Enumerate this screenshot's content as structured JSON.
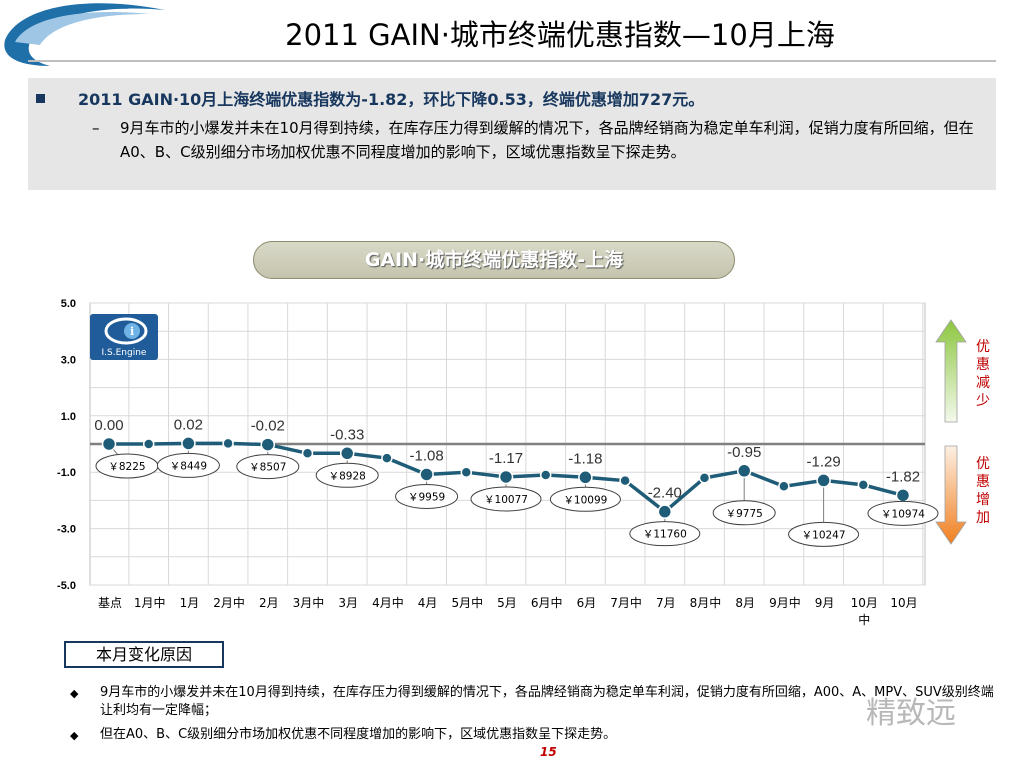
{
  "header": {
    "title": "2011 GAIN·城市终端优惠指数—10月上海"
  },
  "summary": {
    "headline": "2011 GAIN·10月上海终端优惠指数为-1.82，环比下降0.53，终端优惠增加727元。",
    "detail": "9月车市的小爆发并未在10月得到持续，在库存压力得到缓解的情况下，各品牌经销商为稳定单车利润，促销力度有所回缩，但在A0、B、C级别细分市场加权优惠不同程度增加的影响下，区域优惠指数呈下探走势。"
  },
  "chart_title": "GAIN·城市终端优惠指数-上海",
  "logo": {
    "text": "I.S.Engine"
  },
  "legend_arrows": {
    "up_label": "优惠减少",
    "down_label": "优惠增加",
    "up_color": "#8cc63f",
    "down_color": "#f07f1f"
  },
  "chart_data": {
    "type": "line",
    "categories": [
      "基点",
      "1月中",
      "1月",
      "2月中",
      "2月",
      "3月中",
      "3月",
      "4月中",
      "4月",
      "5月中",
      "5月",
      "6月中",
      "6月",
      "7月中",
      "7月",
      "8月中",
      "8月",
      "9月中",
      "9月",
      "10月中",
      "10月"
    ],
    "values": [
      0.0,
      0.0,
      0.02,
      0.02,
      -0.02,
      -0.33,
      -0.33,
      -0.5,
      -1.08,
      -1.0,
      -1.17,
      -1.1,
      -1.18,
      -1.3,
      -2.4,
      -1.2,
      -0.95,
      -1.5,
      -1.29,
      -1.45,
      -1.82
    ],
    "point_labels": [
      {
        "index": 0,
        "value": "0.00"
      },
      {
        "index": 2,
        "value": "0.02"
      },
      {
        "index": 4,
        "value": "-0.02"
      },
      {
        "index": 6,
        "value": "-0.33"
      },
      {
        "index": 8,
        "value": "-1.08"
      },
      {
        "index": 10,
        "value": "-1.17"
      },
      {
        "index": 12,
        "value": "-1.18"
      },
      {
        "index": 14,
        "value": "-2.40"
      },
      {
        "index": 16,
        "value": "-0.95"
      },
      {
        "index": 18,
        "value": "-1.29"
      },
      {
        "index": 20,
        "value": "-1.82"
      }
    ],
    "price_callouts": [
      {
        "index": 0,
        "text": "￥8225"
      },
      {
        "index": 2,
        "text": "￥8449"
      },
      {
        "index": 4,
        "text": "￥8507"
      },
      {
        "index": 6,
        "text": "￥8928"
      },
      {
        "index": 8,
        "text": "￥9959"
      },
      {
        "index": 10,
        "text": "￥10077"
      },
      {
        "index": 12,
        "text": "￥10099"
      },
      {
        "index": 14,
        "text": "￥11760"
      },
      {
        "index": 16,
        "text": "￥9775"
      },
      {
        "index": 18,
        "text": "￥10247"
      },
      {
        "index": 20,
        "text": "￥10974"
      }
    ],
    "y_ticks": [
      "5.0",
      "3.0",
      "1.0",
      "-1.0",
      "-3.0",
      "-5.0"
    ],
    "ylim": [
      -5,
      5
    ],
    "grid": true,
    "line_color": "#1f5c78",
    "marker_color": "#1f5c78",
    "baseline_color": "#808080"
  },
  "reasons": {
    "box_label": "本月变化原因",
    "items": [
      "9月车市的小爆发并未在10月得到持续，在库存压力得到缓解的情况下，各品牌经销商为稳定单车利润，促销力度有所回缩，A00、A、MPV、SUV级别终端让利均有一定降幅；",
      "但在A0、B、C级别细分市场加权优惠不同程度增加的影响下，区域优惠指数呈下探走势。"
    ]
  },
  "page_number": "15",
  "watermark": "精致远"
}
